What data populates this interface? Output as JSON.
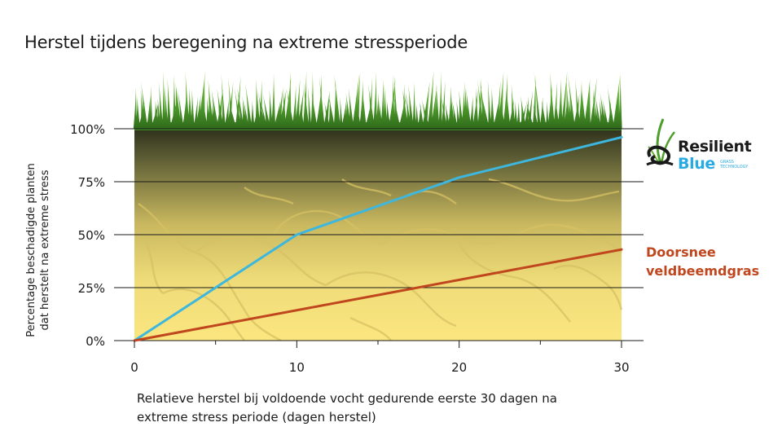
{
  "chart_data": {
    "type": "line",
    "title": "Herstel tijdens beregening na extreme stressperiode",
    "xlabel": "Relatieve herstel bij voldoende vocht gedurende eerste 30 dagen na extreme stress periode (dagen herstel)",
    "xlabel_lines": [
      "Relatieve herstel bij voldoende vocht gedurende eerste 30 dagen na",
      "extreme stress periode (dagen herstel)"
    ],
    "ylabel": "Percentage beschadigde planten dat herstelt na extreme stress",
    "ylabel_lines": [
      "Percentage beschadigde planten",
      "dat herstelt na extreme stress"
    ],
    "xlim": [
      0,
      30
    ],
    "ylim": [
      0,
      100
    ],
    "x_ticks": [
      0,
      10,
      20,
      30
    ],
    "x_tick_labels": [
      "0",
      "10",
      "20",
      "30"
    ],
    "y_ticks": [
      0,
      25,
      50,
      75,
      100
    ],
    "y_tick_labels": [
      "0%",
      "25%",
      "50%",
      "75%",
      "100%"
    ],
    "grid": true,
    "series": [
      {
        "name": "Resilient Blue",
        "color": "#3db7de",
        "x": [
          0,
          10,
          20,
          30
        ],
        "y": [
          0,
          50,
          77,
          96
        ]
      },
      {
        "name": "Doorsnee veldbeemdgras",
        "color": "#c0461e",
        "x": [
          0,
          30
        ],
        "y": [
          0,
          43
        ]
      }
    ],
    "legend": {
      "logo": {
        "line1": "Resilient",
        "line2": "Blue",
        "small_lines": [
          "GRASS",
          "TECHNOLOGY"
        ],
        "icon": "grass-sprout-logo-icon"
      },
      "series_label_lines": [
        "Doorsnee",
        "veldbeemdgras"
      ],
      "placement": "right"
    },
    "background": "grass-on-cracked-soil",
    "colors": {
      "soil_top": "#3a3d22",
      "soil_bottom": "#fbe47c",
      "grass": "#4f9e2c",
      "blue_line": "#3db7de",
      "red_line": "#c0461e"
    }
  }
}
